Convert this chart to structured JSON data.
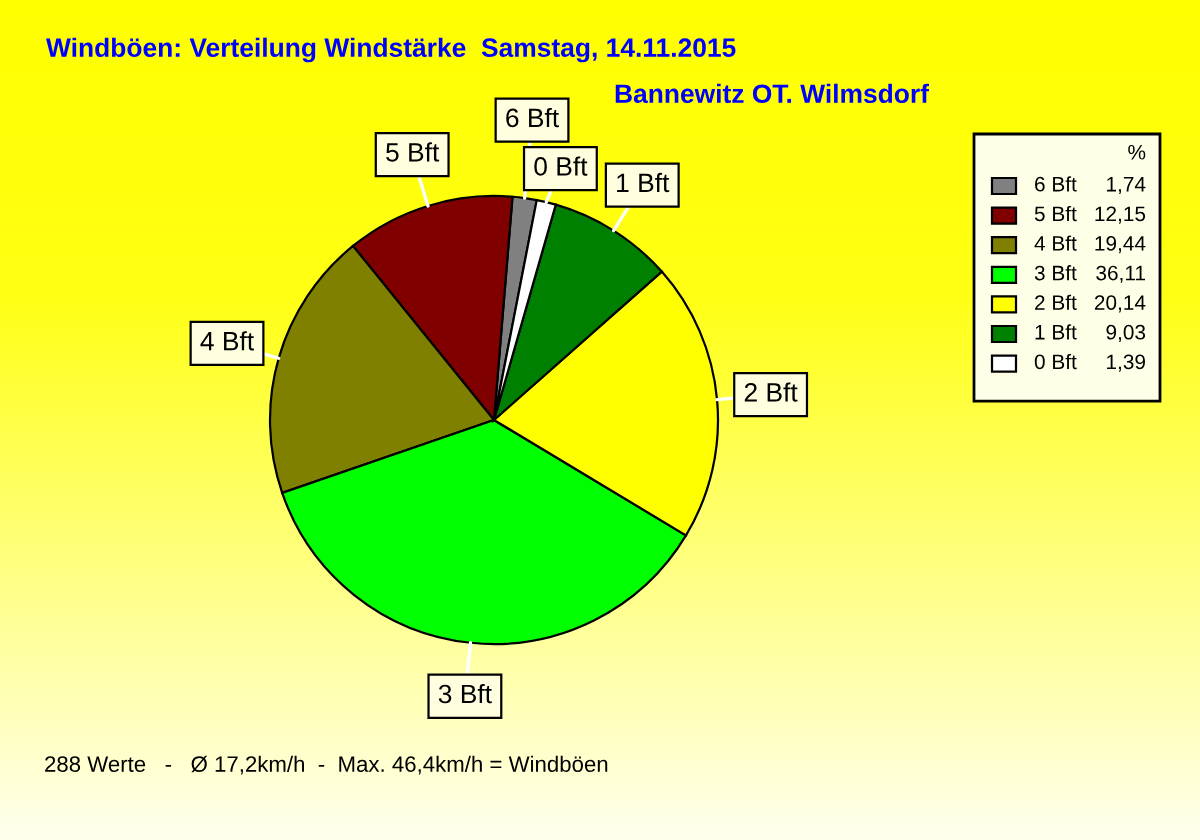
{
  "chart_data": {
    "type": "pie",
    "title": "Windböen: Verteilung Windstärke  Samstag, 14.11.2015",
    "subtitle": "Bannewitz OT. Wilmsdorf",
    "legend_title": "%",
    "legend": "top right",
    "categories": [
      "6 Bft",
      "5 Bft",
      "4 Bft",
      "3 Bft",
      "2 Bft",
      "1 Bft",
      "0 Bft"
    ],
    "values": [
      1.74,
      12.15,
      19.44,
      36.11,
      20.14,
      9.03,
      1.39
    ],
    "value_labels": [
      "1,74",
      "12,15",
      "19,44",
      "36,11",
      "20,14",
      "9,03",
      "1,39"
    ],
    "colors": [
      "#808080",
      "#800000",
      "#808000",
      "#00ff00",
      "#ffff00",
      "#008000",
      "#ffffff"
    ],
    "annotations": [
      "288 Werte   -   Ø 17,2km/h  -  Max. 46,4km/h = Windböen"
    ]
  }
}
